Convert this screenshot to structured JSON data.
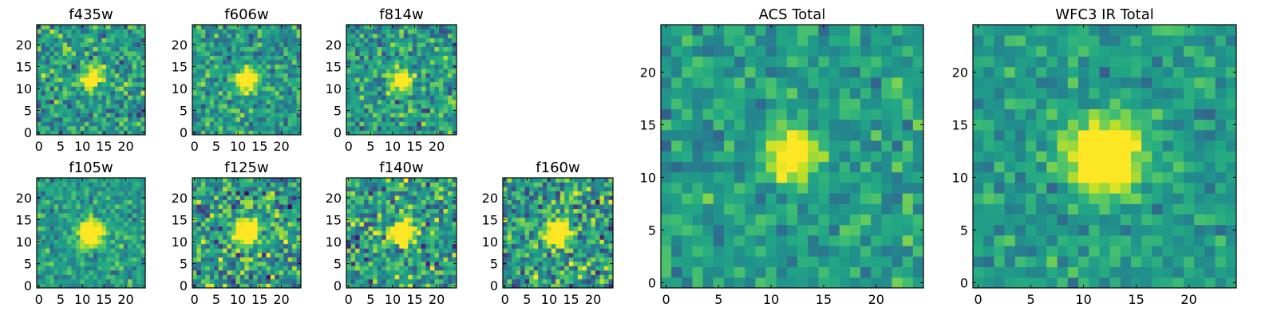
{
  "chart_data": [
    {
      "type": "heatmap",
      "title": "f435w",
      "size": 25,
      "xticks": [
        0,
        5,
        10,
        15,
        20
      ],
      "yticks": [
        0,
        5,
        10,
        15,
        20
      ],
      "xlim": [
        -0.5,
        24.5
      ],
      "ylim": [
        -0.5,
        24.5
      ],
      "colormap": "viridis",
      "source": {
        "cx": 12,
        "cy": 12,
        "radius": 1.6,
        "noise": 0.6,
        "seed": 11
      }
    },
    {
      "type": "heatmap",
      "title": "f606w",
      "size": 25,
      "xticks": [
        0,
        5,
        10,
        15,
        20
      ],
      "yticks": [
        0,
        5,
        10,
        15,
        20
      ],
      "xlim": [
        -0.5,
        24.5
      ],
      "ylim": [
        -0.5,
        24.5
      ],
      "colormap": "viridis",
      "source": {
        "cx": 12,
        "cy": 12,
        "radius": 1.6,
        "noise": 0.55,
        "seed": 23
      }
    },
    {
      "type": "heatmap",
      "title": "f814w",
      "size": 25,
      "xticks": [
        0,
        5,
        10,
        15,
        20
      ],
      "yticks": [
        0,
        5,
        10,
        15,
        20
      ],
      "xlim": [
        -0.5,
        24.5
      ],
      "ylim": [
        -0.5,
        24.5
      ],
      "colormap": "viridis",
      "source": {
        "cx": 12,
        "cy": 12,
        "radius": 1.5,
        "noise": 0.6,
        "seed": 37
      }
    },
    {
      "type": "heatmap",
      "title": "f105w",
      "size": 25,
      "xticks": [
        0,
        5,
        10,
        15,
        20
      ],
      "yticks": [
        0,
        5,
        10,
        15,
        20
      ],
      "xlim": [
        -0.5,
        24.5
      ],
      "ylim": [
        -0.5,
        24.5
      ],
      "colormap": "viridis",
      "source": {
        "cx": 12,
        "cy": 12,
        "radius": 2.0,
        "noise": 0.45,
        "seed": 41
      }
    },
    {
      "type": "heatmap",
      "title": "f125w",
      "size": 25,
      "xticks": [
        0,
        5,
        10,
        15,
        20
      ],
      "yticks": [
        0,
        5,
        10,
        15,
        20
      ],
      "xlim": [
        -0.5,
        24.5
      ],
      "ylim": [
        -0.5,
        24.5
      ],
      "colormap": "viridis",
      "source": {
        "cx": 12,
        "cy": 12,
        "radius": 2.0,
        "noise": 0.75,
        "seed": 53
      }
    },
    {
      "type": "heatmap",
      "title": "f140w",
      "size": 25,
      "xticks": [
        0,
        5,
        10,
        15,
        20
      ],
      "yticks": [
        0,
        5,
        10,
        15,
        20
      ],
      "xlim": [
        -0.5,
        24.5
      ],
      "ylim": [
        -0.5,
        24.5
      ],
      "colormap": "viridis",
      "source": {
        "cx": 12,
        "cy": 12,
        "radius": 2.0,
        "noise": 0.75,
        "seed": 67
      }
    },
    {
      "type": "heatmap",
      "title": "f160w",
      "size": 25,
      "xticks": [
        0,
        5,
        10,
        15,
        20
      ],
      "yticks": [
        0,
        5,
        10,
        15,
        20
      ],
      "xlim": [
        -0.5,
        24.5
      ],
      "ylim": [
        -0.5,
        24.5
      ],
      "colormap": "viridis",
      "source": {
        "cx": 12,
        "cy": 12,
        "radius": 2.0,
        "noise": 0.75,
        "seed": 79
      }
    },
    {
      "type": "heatmap",
      "title": "ACS Total",
      "size": 25,
      "xticks": [
        0,
        5,
        10,
        15,
        20
      ],
      "yticks": [
        0,
        5,
        10,
        15,
        20
      ],
      "xlim": [
        -0.5,
        24.5
      ],
      "ylim": [
        -0.5,
        24.5
      ],
      "colormap": "viridis",
      "source": {
        "cx": 12,
        "cy": 12,
        "radius": 1.5,
        "noise": 0.4,
        "seed": 83
      }
    },
    {
      "type": "heatmap",
      "title": "WFC3 IR Total",
      "size": 25,
      "xticks": [
        0,
        5,
        10,
        15,
        20
      ],
      "yticks": [
        0,
        5,
        10,
        15,
        20
      ],
      "xlim": [
        -0.5,
        24.5
      ],
      "ylim": [
        -0.5,
        24.5
      ],
      "colormap": "viridis",
      "source": {
        "cx": 12,
        "cy": 12,
        "radius": 2.3,
        "noise": 0.35,
        "seed": 97
      }
    }
  ]
}
